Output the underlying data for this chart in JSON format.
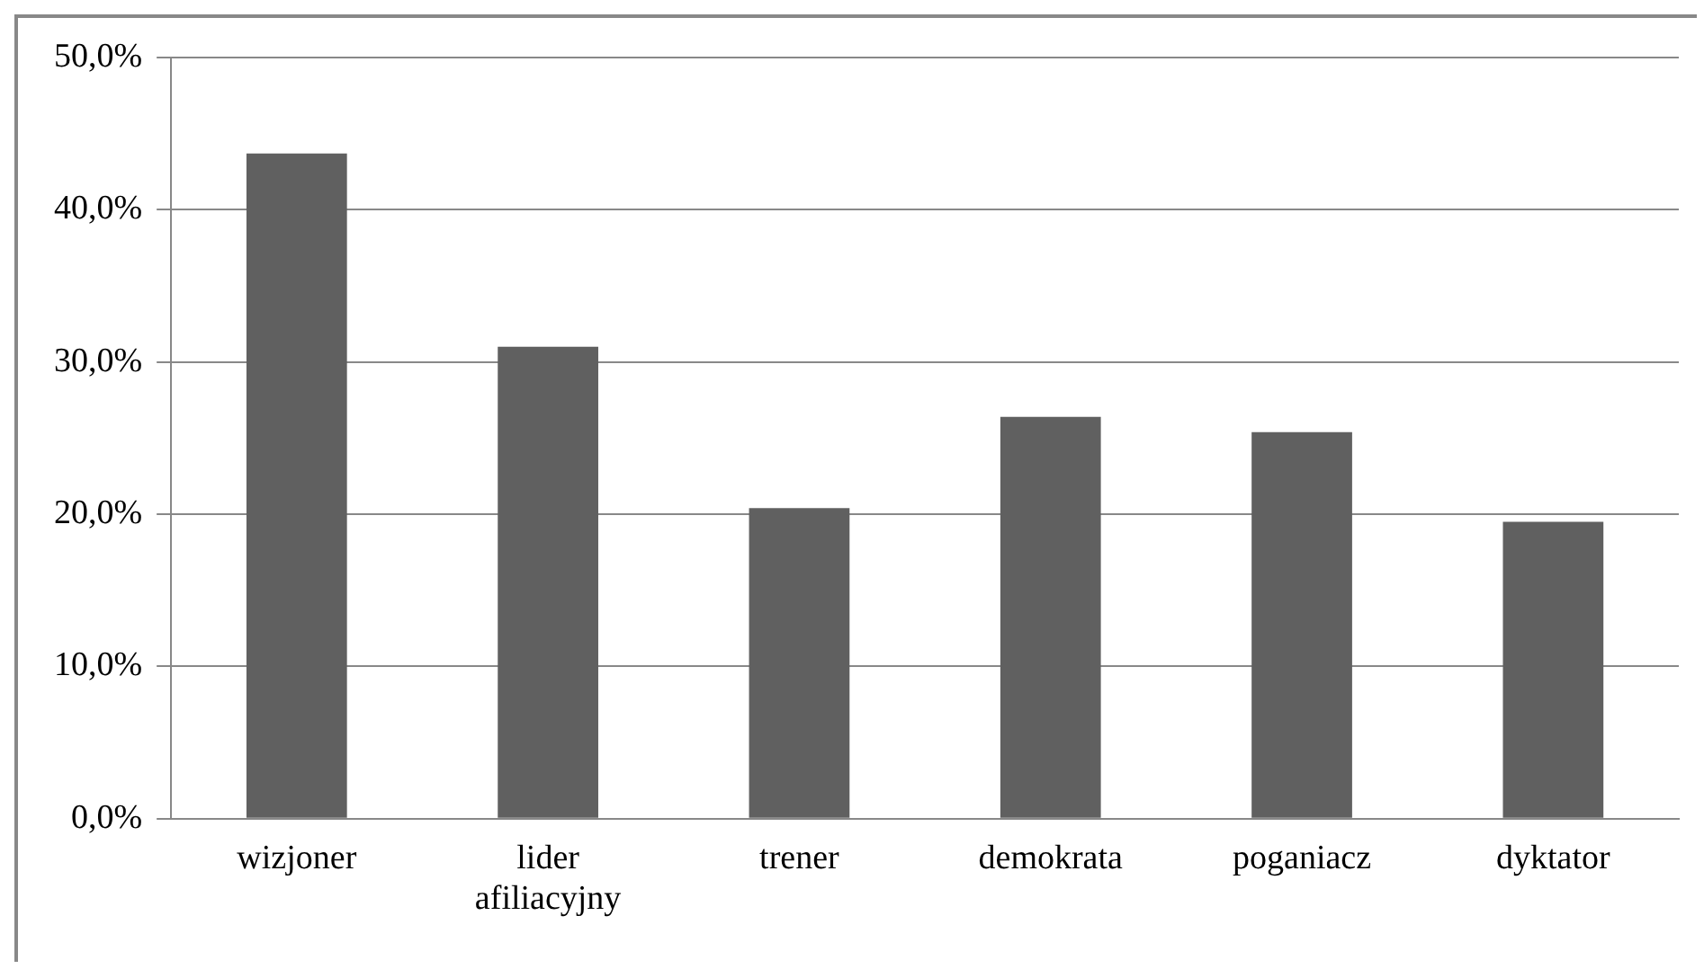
{
  "chart_data": {
    "type": "bar",
    "categories": [
      "wizjoner",
      "lider afiliacyjny",
      "trener",
      "demokrata",
      "poganiacz",
      "dyktator"
    ],
    "values": [
      43.7,
      31.0,
      20.4,
      26.4,
      25.4,
      19.5
    ],
    "color": "#606060",
    "ylim": [
      0,
      50
    ],
    "yticks": [
      {
        "value": 0,
        "label": "0,0%"
      },
      {
        "value": 10,
        "label": "10,0%"
      },
      {
        "value": 20,
        "label": "20,0%"
      },
      {
        "value": 30,
        "label": "30,0%"
      },
      {
        "value": 40,
        "label": "40,0%"
      },
      {
        "value": 50,
        "label": "50,0%"
      }
    ],
    "grid": "y"
  }
}
